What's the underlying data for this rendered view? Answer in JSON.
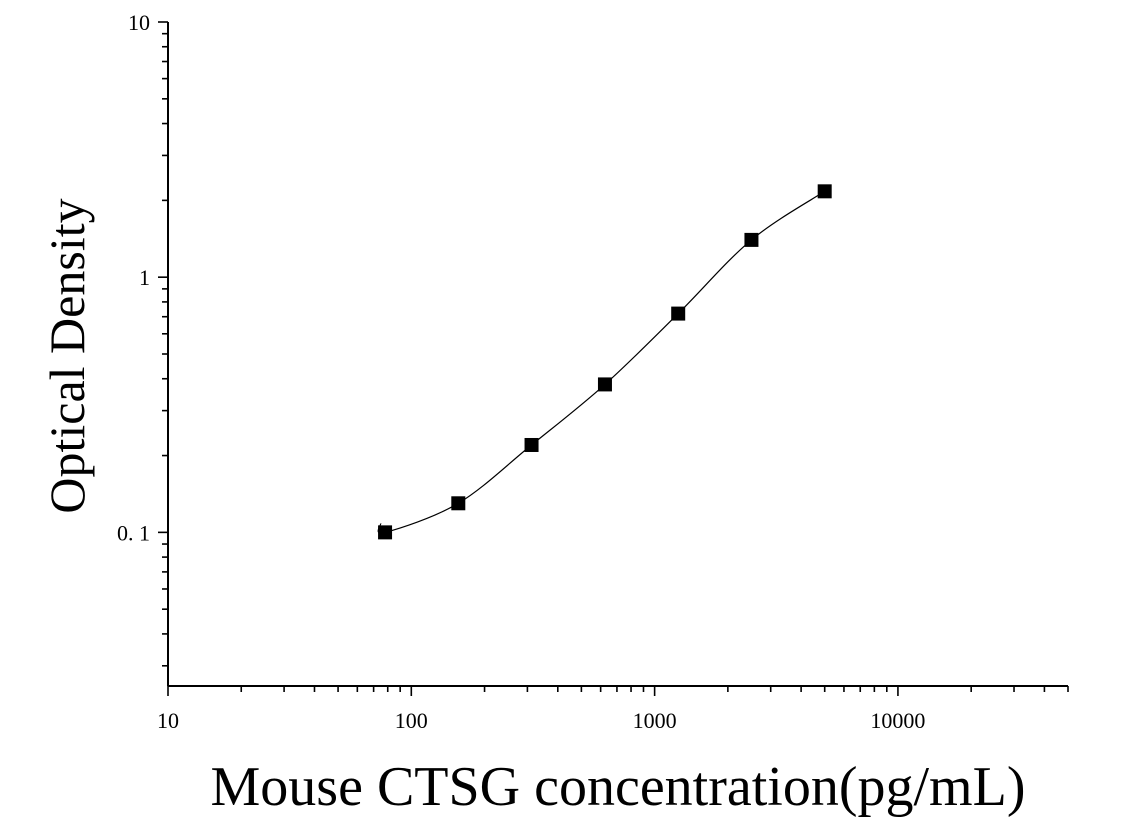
{
  "chart_data": {
    "type": "scatter",
    "title": "",
    "xlabel": "Mouse CTSG concentration(pg/mL)",
    "ylabel": "Optical Density",
    "x_scale": "log",
    "y_scale": "log",
    "xlim": [
      10,
      50000
    ],
    "ylim": [
      0.025,
      10
    ],
    "x_ticks": [
      {
        "value": 10,
        "label": "10"
      },
      {
        "value": 100,
        "label": "100"
      },
      {
        "value": 1000,
        "label": "1000"
      },
      {
        "value": 10000,
        "label": "10000"
      }
    ],
    "y_ticks": [
      {
        "value": 0.1,
        "label": "0. 1"
      },
      {
        "value": 1,
        "label": "1"
      },
      {
        "value": 10,
        "label": "10"
      }
    ],
    "grid": false,
    "legend": "none",
    "colors": {
      "marker": "#000000",
      "curve": "#000000",
      "axis": "#000000"
    },
    "series": [
      {
        "x": [
          78,
          156,
          312,
          625,
          1250,
          2500,
          5000
        ],
        "y": [
          0.1,
          0.13,
          0.22,
          0.38,
          0.72,
          1.4,
          2.17
        ],
        "marker": "square",
        "fit_curve": true
      }
    ]
  }
}
